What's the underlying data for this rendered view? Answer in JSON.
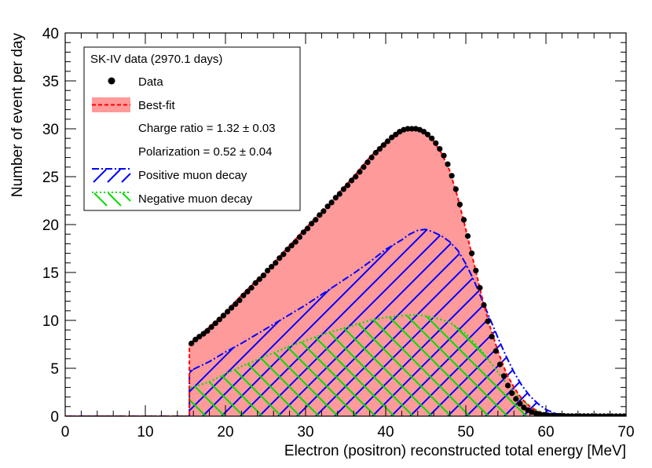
{
  "chart_data": {
    "type": "line",
    "xlabel": "Electron (positron) reconstructed total energy [MeV]",
    "ylabel": "Number of event per day",
    "xlim": [
      0,
      70
    ],
    "ylim": [
      0,
      40
    ],
    "xticks": [
      "0",
      "10",
      "20",
      "30",
      "40",
      "50",
      "60",
      "70"
    ],
    "yticks": [
      "0",
      "5",
      "10",
      "15",
      "20",
      "25",
      "30",
      "35",
      "40"
    ],
    "legend": {
      "position": "top-left",
      "title": "SK-IV data (2970.1 days)",
      "entries": [
        {
          "key": "data",
          "label": "Data"
        },
        {
          "key": "bestfit",
          "label": "Best-fit"
        },
        {
          "key": "charge",
          "label": "Charge ratio = 1.32 ± 0.03"
        },
        {
          "key": "polar",
          "label": "Polarization = 0.52 ± 0.04"
        },
        {
          "key": "positive",
          "label": "Positive muon decay"
        },
        {
          "key": "negative",
          "label": "Negative muon decay"
        }
      ]
    },
    "fit_parameters": {
      "charge_ratio": 1.32,
      "charge_ratio_err": 0.03,
      "polarization": 0.52,
      "polarization_err": 0.04
    },
    "colors": {
      "bestfit_fill": "#ff9a9a",
      "bestfit_line": "#ff0000",
      "positive": "#0000ff",
      "negative": "#00dd00",
      "data": "#000000"
    },
    "series": [
      {
        "name": "Data",
        "style": "markers",
        "x": [
          15.75,
          16.25,
          16.75,
          17.25,
          17.75,
          18.25,
          18.75,
          19.25,
          19.75,
          20.25,
          20.75,
          21.25,
          21.75,
          22.25,
          22.75,
          23.25,
          23.75,
          24.25,
          24.75,
          25.25,
          25.75,
          26.25,
          26.75,
          27.25,
          27.75,
          28.25,
          28.75,
          29.25,
          29.75,
          30.25,
          30.75,
          31.25,
          31.75,
          32.25,
          32.75,
          33.25,
          33.75,
          34.25,
          34.75,
          35.25,
          35.75,
          36.25,
          36.75,
          37.25,
          37.75,
          38.25,
          38.75,
          39.25,
          39.75,
          40.25,
          40.75,
          41.25,
          41.75,
          42.25,
          42.75,
          43.25,
          43.75,
          44.25,
          44.75,
          45.25,
          45.75,
          46.25,
          46.75,
          47.25,
          47.75,
          48.25,
          48.75,
          49.25,
          49.75,
          50.25,
          50.75,
          51.25,
          51.75,
          52.25,
          52.75,
          53.25,
          53.75,
          54.25,
          54.75,
          55.25,
          55.75,
          56.25,
          56.75,
          57.25,
          57.75,
          58.25,
          58.75,
          59.25,
          59.75,
          60.25,
          60.75,
          61.25,
          61.75,
          62.25,
          62.75,
          63.25,
          63.75,
          64.25,
          64.75,
          65.25,
          65.75,
          66.25,
          66.75,
          67.25,
          67.75,
          68.25,
          68.75,
          69.25,
          69.75
        ],
        "y": [
          7.6,
          8.0,
          8.3,
          8.6,
          8.9,
          9.3,
          9.7,
          10.1,
          10.5,
          10.9,
          11.3,
          11.7,
          12.1,
          12.6,
          13.0,
          13.4,
          13.9,
          14.3,
          14.7,
          15.2,
          15.6,
          16.0,
          16.5,
          16.9,
          17.4,
          17.8,
          18.2,
          18.7,
          19.2,
          19.6,
          20.1,
          20.5,
          21.0,
          21.4,
          21.9,
          22.3,
          22.8,
          23.2,
          23.7,
          24.1,
          24.6,
          25.0,
          25.5,
          26.0,
          26.5,
          27.0,
          27.5,
          27.9,
          28.3,
          28.7,
          29.1,
          29.4,
          29.7,
          29.9,
          30.0,
          30.0,
          30.0,
          29.9,
          29.7,
          29.4,
          29.0,
          28.5,
          27.9,
          27.2,
          26.3,
          25.1,
          23.7,
          22.1,
          20.5,
          18.8,
          17.0,
          15.2,
          13.4,
          11.6,
          9.9,
          8.3,
          6.8,
          5.4,
          4.2,
          3.2,
          2.4,
          1.8,
          1.3,
          0.9,
          0.63,
          0.43,
          0.29,
          0.2,
          0.14,
          0.1,
          0.07,
          0.05,
          0.04,
          0.03,
          0.02,
          0.02,
          0.01,
          0.01,
          0.01,
          0.01,
          0.01,
          0.0,
          0.0,
          0.0,
          0.0,
          0.0,
          0.0,
          0.0,
          0.0
        ]
      },
      {
        "name": "Best-fit",
        "style": "filled-dashed",
        "x": [
          0,
          15.5,
          15.5,
          18,
          20,
          22,
          24,
          26,
          28,
          30,
          32,
          34,
          36,
          38,
          40,
          41,
          42,
          43,
          44,
          45,
          46,
          47,
          48,
          49,
          50,
          51,
          52,
          53,
          54,
          55,
          56,
          57,
          58,
          59,
          60,
          61,
          62,
          63,
          64,
          65,
          66,
          67,
          68,
          69,
          70
        ],
        "y": [
          0,
          0,
          7.6,
          9.3,
          10.9,
          12.6,
          14.3,
          16.0,
          17.8,
          19.6,
          21.4,
          23.2,
          25.0,
          27.0,
          28.7,
          29.4,
          29.9,
          30.0,
          29.9,
          29.5,
          28.7,
          27.4,
          25.6,
          22.8,
          19.5,
          16.0,
          12.5,
          9.4,
          6.8,
          4.6,
          3.0,
          1.8,
          1.0,
          0.5,
          0.2,
          0.1,
          0.05,
          0.02,
          0.01,
          0.01,
          0.0,
          0.0,
          0.0,
          0.0,
          0.0
        ]
      },
      {
        "name": "Positive muon decay",
        "style": "hatched-dashdot",
        "x": [
          0,
          15.5,
          15.5,
          18,
          20,
          22,
          24,
          26,
          28,
          30,
          32,
          34,
          36,
          38,
          40,
          42,
          43,
          44,
          45,
          46,
          47,
          48,
          49,
          50,
          51,
          52,
          53,
          54,
          55,
          56,
          57,
          58,
          59,
          60,
          61,
          62,
          63,
          64,
          65,
          70
        ],
        "y": [
          0,
          0,
          4.7,
          5.7,
          6.7,
          7.6,
          8.6,
          9.6,
          10.6,
          11.6,
          12.7,
          13.8,
          14.9,
          16.1,
          17.4,
          18.4,
          19.0,
          19.4,
          19.5,
          19.2,
          18.8,
          18.2,
          17.3,
          15.9,
          14.2,
          12.2,
          10.2,
          8.2,
          6.3,
          4.6,
          3.2,
          2.1,
          1.3,
          0.7,
          0.35,
          0.15,
          0.05,
          0.02,
          0.0,
          0.0
        ]
      },
      {
        "name": "Negative muon decay",
        "style": "hatched-dotted",
        "x": [
          0,
          15.5,
          15.5,
          18,
          20,
          22,
          24,
          26,
          28,
          30,
          32,
          34,
          36,
          38,
          40,
          42,
          44,
          46,
          48,
          50,
          52,
          53,
          54,
          55,
          56,
          57,
          58,
          59,
          60,
          61,
          62,
          63,
          65,
          70
        ],
        "y": [
          0,
          0,
          2.9,
          3.6,
          4.4,
          5.2,
          5.9,
          6.6,
          7.3,
          7.9,
          8.5,
          9.0,
          9.5,
          10.0,
          10.3,
          10.5,
          10.6,
          10.3,
          9.8,
          8.6,
          6.8,
          5.7,
          4.6,
          3.5,
          2.5,
          1.7,
          1.0,
          0.55,
          0.25,
          0.1,
          0.04,
          0.01,
          0.0,
          0.0
        ]
      }
    ]
  }
}
